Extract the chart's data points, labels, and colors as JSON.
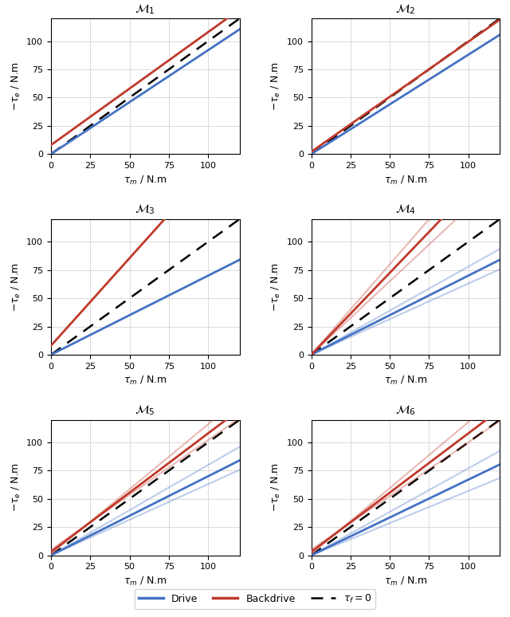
{
  "titles": [
    "$\\mathcal{M}_1$",
    "$\\mathcal{M}_2$",
    "$\\mathcal{M}_3$",
    "$\\mathcal{M}_4$",
    "$\\mathcal{M}_5$",
    "$\\mathcal{M}_6$"
  ],
  "xlabel": "$\\tau_m$ / N.m",
  "ylabel": "$-\\tau_e$ / N.m",
  "xlim": [
    0,
    120
  ],
  "ylim": [
    0,
    120
  ],
  "xticks": [
    0,
    25,
    50,
    75,
    100
  ],
  "yticks": [
    0,
    25,
    50,
    75,
    100
  ],
  "drive_color": "#4472c4",
  "backdrive_color": "#c0392b",
  "ref_color": "#000000",
  "drive_alpha_main": 1.0,
  "drive_alpha_ghost": 0.35,
  "legend_labels": [
    "Drive",
    "Backdrive",
    "$\\tau_f = 0$"
  ],
  "models": {
    "M1": {
      "drive_slopes": [
        0.92
      ],
      "drive_intercepts": [
        0.0
      ],
      "back_slopes": [
        1.0
      ],
      "back_intercepts": [
        8.0
      ],
      "ghost_drive": [],
      "ghost_back": []
    },
    "M2": {
      "drive_slopes": [
        0.88
      ],
      "drive_intercepts": [
        0.0
      ],
      "back_slopes": [
        0.975
      ],
      "back_intercepts": [
        2.0
      ],
      "ghost_drive": [],
      "ghost_back": []
    },
    "M3": {
      "drive_slopes": [
        0.7
      ],
      "drive_intercepts": [
        0.0
      ],
      "back_slopes": [
        1.55
      ],
      "back_intercepts": [
        8.0
      ],
      "ghost_drive": [],
      "ghost_back": []
    },
    "M4": {
      "drive_slopes": [
        0.63,
        0.7,
        0.78
      ],
      "drive_intercepts": [
        0.0,
        0.0,
        0.0
      ],
      "back_slopes": [
        1.3,
        1.45,
        1.6
      ],
      "back_intercepts": [
        0.0,
        0.0,
        0.0
      ],
      "ghost_drive": [
        0,
        2
      ],
      "ghost_back": [
        0,
        2
      ]
    },
    "M5": {
      "drive_slopes": [
        0.63,
        0.7,
        0.8
      ],
      "drive_intercepts": [
        0.0,
        0.0,
        0.0
      ],
      "back_slopes": [
        0.97,
        1.05,
        1.15
      ],
      "back_intercepts": [
        5.0,
        3.0,
        1.0
      ],
      "ghost_drive": [
        0,
        2
      ],
      "ghost_back": [
        0,
        2
      ]
    },
    "M6": {
      "drive_slopes": [
        0.57,
        0.67,
        0.77
      ],
      "drive_intercepts": [
        0.0,
        0.0,
        0.0
      ],
      "back_slopes": [
        0.95,
        1.05,
        1.17
      ],
      "back_intercepts": [
        5.0,
        3.0,
        1.0
      ],
      "ghost_drive": [
        0,
        2
      ],
      "ghost_back": [
        0,
        2
      ]
    }
  }
}
